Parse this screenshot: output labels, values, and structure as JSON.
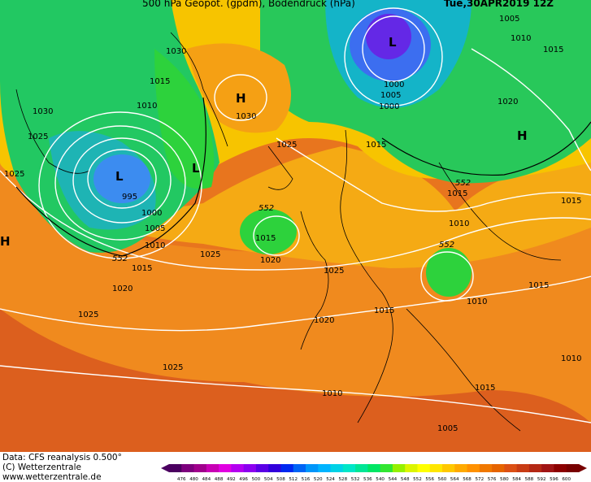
{
  "header": {
    "title": "500 hPa Geopot. (gpdm), Bodendruck (hPa)",
    "valid_time": "Tue,30APR2019 12Z"
  },
  "footer": {
    "data_source": "Data: CFS reanalysis 0.500°",
    "copyright": "(C) Wetterzentrale",
    "url": "www.wetterzentrale.de"
  },
  "pressure_centers": [
    {
      "type": "H",
      "label": "H",
      "value": "1030"
    },
    {
      "type": "L",
      "label": "L",
      "value": "995"
    },
    {
      "type": "L",
      "label": "L",
      "value": "1000"
    },
    {
      "type": "L",
      "label": "L",
      "value": ""
    },
    {
      "type": "H",
      "label": "H",
      "value": ""
    },
    {
      "type": "H",
      "label": "H",
      "value": ""
    }
  ],
  "isobar_labels": [
    "1030",
    "1025",
    "1025",
    "995",
    "1000",
    "1005",
    "1010",
    "1015",
    "1020",
    "1025",
    "1025",
    "1015",
    "1020",
    "1015",
    "1010",
    "1030",
    "1025",
    "1005",
    "1000",
    "1005",
    "1010",
    "1015",
    "1020",
    "1015",
    "1010",
    "1015",
    "1025",
    "1020",
    "1015",
    "1010",
    "1015",
    "1010",
    "1015",
    "1005",
    "1010",
    "1015",
    "1020",
    "1025"
  ],
  "geopotential_labels": [
    "552",
    "552",
    "552",
    "552"
  ],
  "colorbar": {
    "ticks": [
      "476",
      "480",
      "484",
      "488",
      "492",
      "496",
      "500",
      "504",
      "508",
      "512",
      "516",
      "520",
      "524",
      "528",
      "532",
      "536",
      "540",
      "544",
      "548",
      "552",
      "556",
      "560",
      "564",
      "568",
      "572",
      "576",
      "580",
      "584",
      "588",
      "592",
      "596",
      "600"
    ],
    "colors": [
      "#4b0060",
      "#7d007d",
      "#a0008c",
      "#c800b4",
      "#e100e1",
      "#b400f0",
      "#8c00f0",
      "#5a00e6",
      "#3200dc",
      "#0028f0",
      "#0064f5",
      "#0096fa",
      "#00b4ff",
      "#00d2e6",
      "#00e6c8",
      "#00e696",
      "#00e664",
      "#32e632",
      "#96f000",
      "#dcf500",
      "#ffff00",
      "#ffe600",
      "#ffc800",
      "#ffaa00",
      "#ff9100",
      "#f07800",
      "#e66400",
      "#dc5014",
      "#c83c14",
      "#b42814",
      "#a01414",
      "#8c0000",
      "#780000"
    ]
  }
}
